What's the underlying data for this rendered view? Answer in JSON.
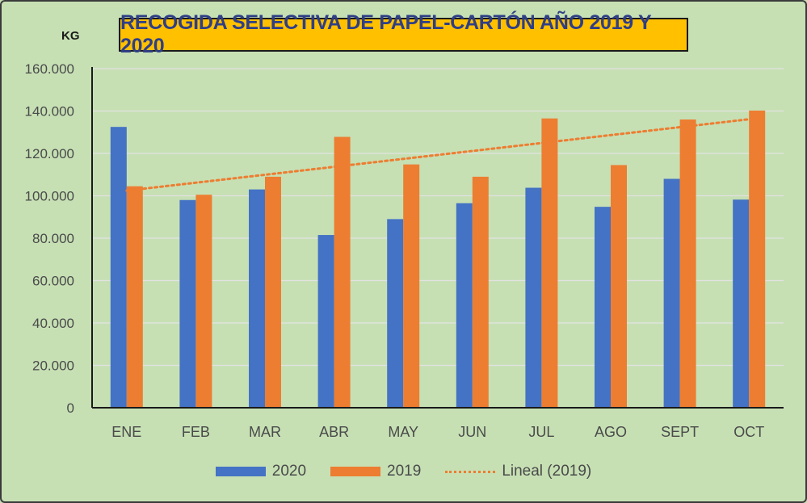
{
  "chart_data": {
    "type": "bar",
    "title": "RECOGIDA SELECTIVA DE PAPEL-CARTÓN AÑO 2019 Y 2020",
    "ylabel": "KG",
    "xlabel": "",
    "categories": [
      "ENE",
      "FEB",
      "MAR",
      "ABR",
      "MAY",
      "JUN",
      "JUL",
      "AGO",
      "SEPT",
      "OCT"
    ],
    "series": [
      {
        "name": "2020",
        "color": "#4472c4",
        "values": [
          132500,
          98000,
          103000,
          81500,
          89000,
          96500,
          103800,
          94800,
          108000,
          98200
        ]
      },
      {
        "name": "2019",
        "color": "#ed7d31",
        "values": [
          104500,
          100500,
          109000,
          127800,
          114800,
          109000,
          136500,
          114500,
          136000,
          140200
        ]
      }
    ],
    "trendline": {
      "name": "Lineal (2019)",
      "series": "2019",
      "type": "linear",
      "color": "#ed7d31"
    },
    "ylim": [
      0,
      160000
    ],
    "yticks": [
      0,
      20000,
      40000,
      60000,
      80000,
      100000,
      120000,
      140000,
      160000
    ],
    "ytick_labels": [
      "0",
      "20.000",
      "40.000",
      "60.000",
      "80.000",
      "100.000",
      "120.000",
      "140.000",
      "160.000"
    ],
    "grid": true,
    "legend_position": "bottom"
  }
}
